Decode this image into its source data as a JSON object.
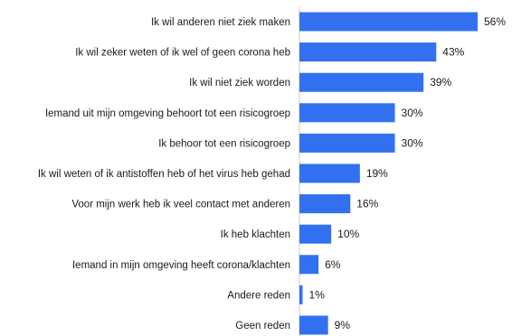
{
  "chart_data": {
    "type": "bar",
    "orientation": "horizontal",
    "categories": [
      "Ik wil anderen niet ziek maken",
      "Ik wil zeker weten of ik wel of geen corona heb",
      "Ik wil niet ziek worden",
      "Iemand uit mijn omgeving behoort tot een risicogroep",
      "Ik behoor tot een risicogroep",
      "Ik wil weten of ik antistoffen heb of het virus heb gehad",
      "Voor mijn werk heb ik veel contact met anderen",
      "Ik heb klachten",
      "Iemand in mijn omgeving heeft corona/klachten",
      "Andere reden",
      "Geen reden"
    ],
    "values": [
      56,
      43,
      39,
      30,
      30,
      19,
      16,
      10,
      6,
      1,
      9
    ],
    "value_labels": [
      "56%",
      "43%",
      "39%",
      "30%",
      "30%",
      "19%",
      "16%",
      "10%",
      "6%",
      "1%",
      "9%"
    ],
    "unit": "%",
    "bar_color": "#3370f0",
    "xlim": [
      0,
      56
    ],
    "grid": false,
    "legend": "none"
  }
}
